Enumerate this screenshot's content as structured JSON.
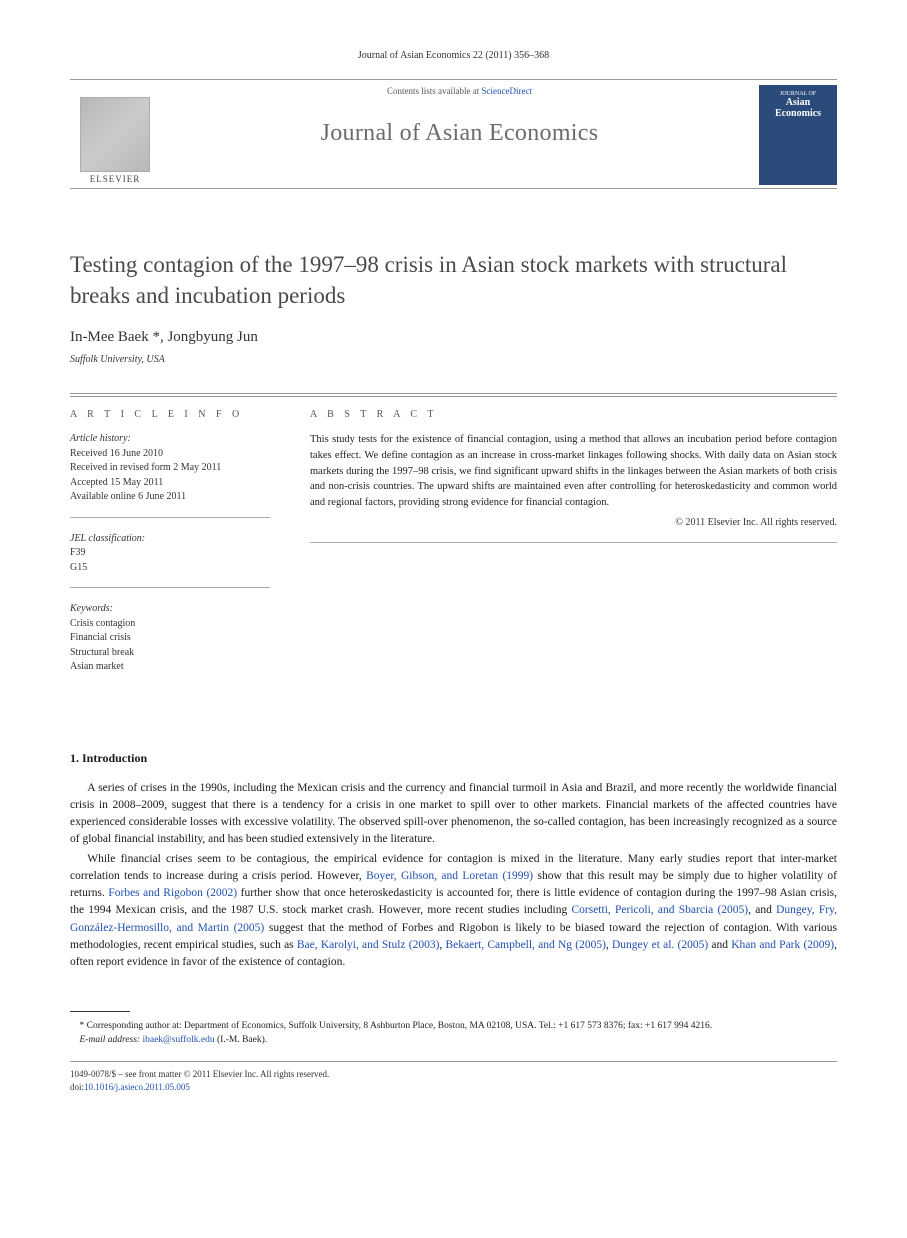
{
  "journal_ref": "Journal of Asian Economics 22 (2011) 356–368",
  "header": {
    "contents_prefix": "Contents lists available at ",
    "contents_link": "ScienceDirect",
    "journal_name": "Journal of Asian Economics",
    "elsevier_label": "ELSEVIER",
    "cover_line1": "JOURNAL OF",
    "cover_line2": "Asian",
    "cover_line3": "Economics"
  },
  "title": "Testing contagion of the 1997–98 crisis in Asian stock markets with structural breaks and incubation periods",
  "authors": "In-Mee Baek *, Jongbyung Jun",
  "affiliation": "Suffolk University, USA",
  "info": {
    "heading": "A R T I C L E  I N F O",
    "history_label": "Article history:",
    "history": [
      "Received 16 June 2010",
      "Received in revised form 2 May 2011",
      "Accepted 15 May 2011",
      "Available online 6 June 2011"
    ],
    "jel_label": "JEL classification:",
    "jel": [
      "F39",
      "G15"
    ],
    "keywords_label": "Keywords:",
    "keywords": [
      "Crisis contagion",
      "Financial crisis",
      "Structural break",
      "Asian market"
    ]
  },
  "abstract": {
    "heading": "A B S T R A C T",
    "text": "This study tests for the existence of financial contagion, using a method that allows an incubation period before contagion takes effect. We define contagion as an increase in cross-market linkages following shocks. With daily data on Asian stock markets during the 1997–98 crisis, we find significant upward shifts in the linkages between the Asian markets of both crisis and non-crisis countries. The upward shifts are maintained even after controlling for heteroskedasticity and common world and regional factors, providing strong evidence for financial contagion.",
    "copyright": "© 2011 Elsevier Inc. All rights reserved."
  },
  "section1": {
    "heading": "1. Introduction",
    "p1": "A series of crises in the 1990s, including the Mexican crisis and the currency and financial turmoil in Asia and Brazil, and more recently the worldwide financial crisis in 2008–2009, suggest that there is a tendency for a crisis in one market to spill over to other markets. Financial markets of the affected countries have experienced considerable losses with excessive volatility. The observed spill-over phenomenon, the so-called contagion, has been increasingly recognized as a source of global financial instability, and has been studied extensively in the literature.",
    "p2_pre": "While financial crises seem to be contagious, the empirical evidence for contagion is mixed in the literature. Many early studies report that inter-market correlation tends to increase during a crisis period. However, ",
    "p2_cite1": "Boyer, Gibson, and Loretan (1999)",
    "p2_mid1": " show that this result may be simply due to higher volatility of returns. ",
    "p2_cite2": "Forbes and Rigobon (2002)",
    "p2_mid2": " further show that once heteroskedasticity is accounted for, there is little evidence of contagion during the 1997–98 Asian crisis, the 1994 Mexican crisis, and the 1987 U.S. stock market crash. However, more recent studies including ",
    "p2_cite3": "Corsetti, Pericoli, and Sbarcia (2005)",
    "p2_mid3": ", and ",
    "p2_cite4": "Dungey, Fry, González-Hermosillo, and Martin (2005)",
    "p2_mid4": " suggest that the method of Forbes and Rigobon is likely to be biased toward the rejection of contagion. With various methodologies, recent empirical studies, such as ",
    "p2_cite5": "Bae, Karolyi, and Stulz (2003)",
    "p2_mid5": ", ",
    "p2_cite6": "Bekaert, Campbell, and Ng (2005)",
    "p2_mid6": ", ",
    "p2_cite7": "Dungey et al. (2005)",
    "p2_mid7": " and ",
    "p2_cite8": "Khan and Park (2009)",
    "p2_end": ", often report evidence in favor of the existence of contagion."
  },
  "footnote": {
    "corr": "* Corresponding author at: Department of Economics, Suffolk University, 8 Ashburton Place, Boston, MA 02108, USA. Tel.: +1 617 573 8376; fax: +1 617 994 4216.",
    "email_label": "E-mail address: ",
    "email": "ibaek@suffolk.edu",
    "email_suffix": " (I.-M. Baek)."
  },
  "bottom": {
    "issn": "1049-0078/$ – see front matter © 2011 Elsevier Inc. All rights reserved.",
    "doi_label": "doi:",
    "doi": "10.1016/j.asieco.2011.05.005"
  }
}
